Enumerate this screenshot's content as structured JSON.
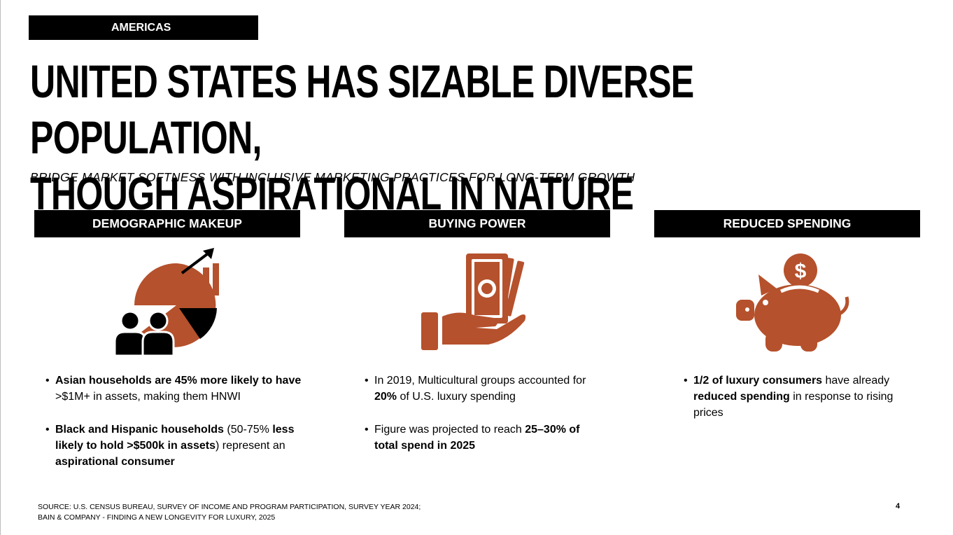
{
  "header": {
    "region_tag": "AMERICAS",
    "title_line1": "UNITED STATES HAS SIZABLE DIVERSE POPULATION,",
    "title_line2": "THOUGH ASPIRATIONAL IN NATURE",
    "subtitle": "BRIDGE MARKET SOFTNESS WITH INCLUSIVE MARKETING PRACTICES FOR LONG-TERM GROWTH"
  },
  "colors": {
    "accent": "#b5512c",
    "dark": "#000000"
  },
  "columns": [
    {
      "heading": "DEMOGRAPHIC MAKEUP",
      "icon": "demographics-chart-icon",
      "bullets": [
        {
          "parts": [
            {
              "t": "Asian households are 45% more likely to have",
              "b": true
            },
            {
              "t": " >$1M+ in assets, making them HNWI",
              "b": false
            }
          ]
        },
        {
          "parts": [
            {
              "t": "Black and Hispanic households",
              "b": true
            },
            {
              "t": " (50-75% ",
              "b": false
            },
            {
              "t": "less likely to hold >$500k in assets",
              "b": true
            },
            {
              "t": ") represent an ",
              "b": false
            },
            {
              "t": "aspirational consumer",
              "b": true
            }
          ]
        }
      ]
    },
    {
      "heading": "BUYING POWER",
      "icon": "money-in-hand-icon",
      "bullets": [
        {
          "parts": [
            {
              "t": "In 2019, Multicultural groups accounted for ",
              "b": false
            },
            {
              "t": "20%",
              "b": true
            },
            {
              "t": " of U.S. luxury spending",
              "b": false
            }
          ]
        },
        {
          "parts": [
            {
              "t": "Figure was projected to reach ",
              "b": false
            },
            {
              "t": "25–30% of total spend in 2025",
              "b": true
            }
          ]
        }
      ]
    },
    {
      "heading": "REDUCED SPENDING",
      "icon": "piggy-bank-icon",
      "bullets": [
        {
          "parts": [
            {
              "t": "1/2 of luxury consumers",
              "b": true
            },
            {
              "t": " have already ",
              "b": false
            },
            {
              "t": "reduced spending",
              "b": true
            },
            {
              "t": " in response to rising prices",
              "b": false
            }
          ]
        }
      ]
    }
  ],
  "footer": {
    "source_line1": "SOURCE: U.S. CENSUS BUREAU, SURVEY OF INCOME AND PROGRAM PARTICIPATION, SURVEY YEAR 2024;",
    "source_line2": "BAIN & COMPANY - FINDING A NEW LONGEVITY FOR LUXURY, 2025",
    "page_number": "4"
  }
}
